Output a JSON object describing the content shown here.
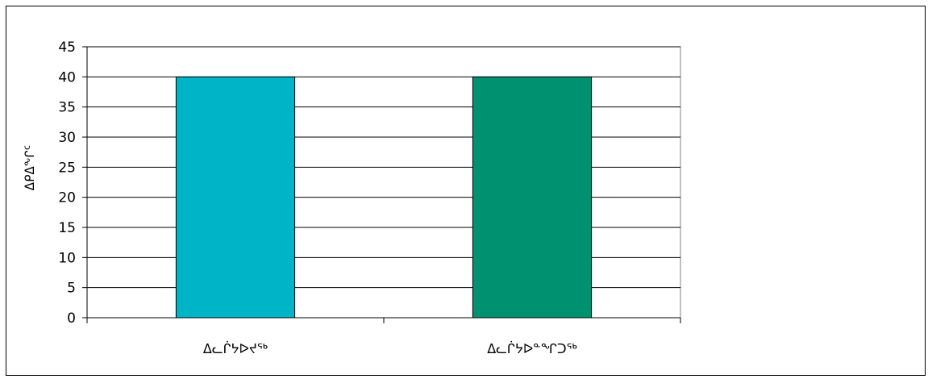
{
  "chart_data": {
    "type": "bar",
    "categories": [
      "ᐃᓚᒌᔭᐅᔪᖅ",
      "ᐃᓚᒌᔭᐅᓐᖏᑐᖅ"
    ],
    "values": [
      40,
      40
    ],
    "colors": [
      "#00b4c8",
      "#009270"
    ],
    "title": "",
    "xlabel": "",
    "ylabel": "ᐃᑭᐃᖕᒋᑦ",
    "ylim": [
      0,
      45
    ],
    "yticks": [
      0,
      5,
      10,
      15,
      20,
      25,
      30,
      35,
      40,
      45
    ],
    "grid": true,
    "legend": "none"
  }
}
